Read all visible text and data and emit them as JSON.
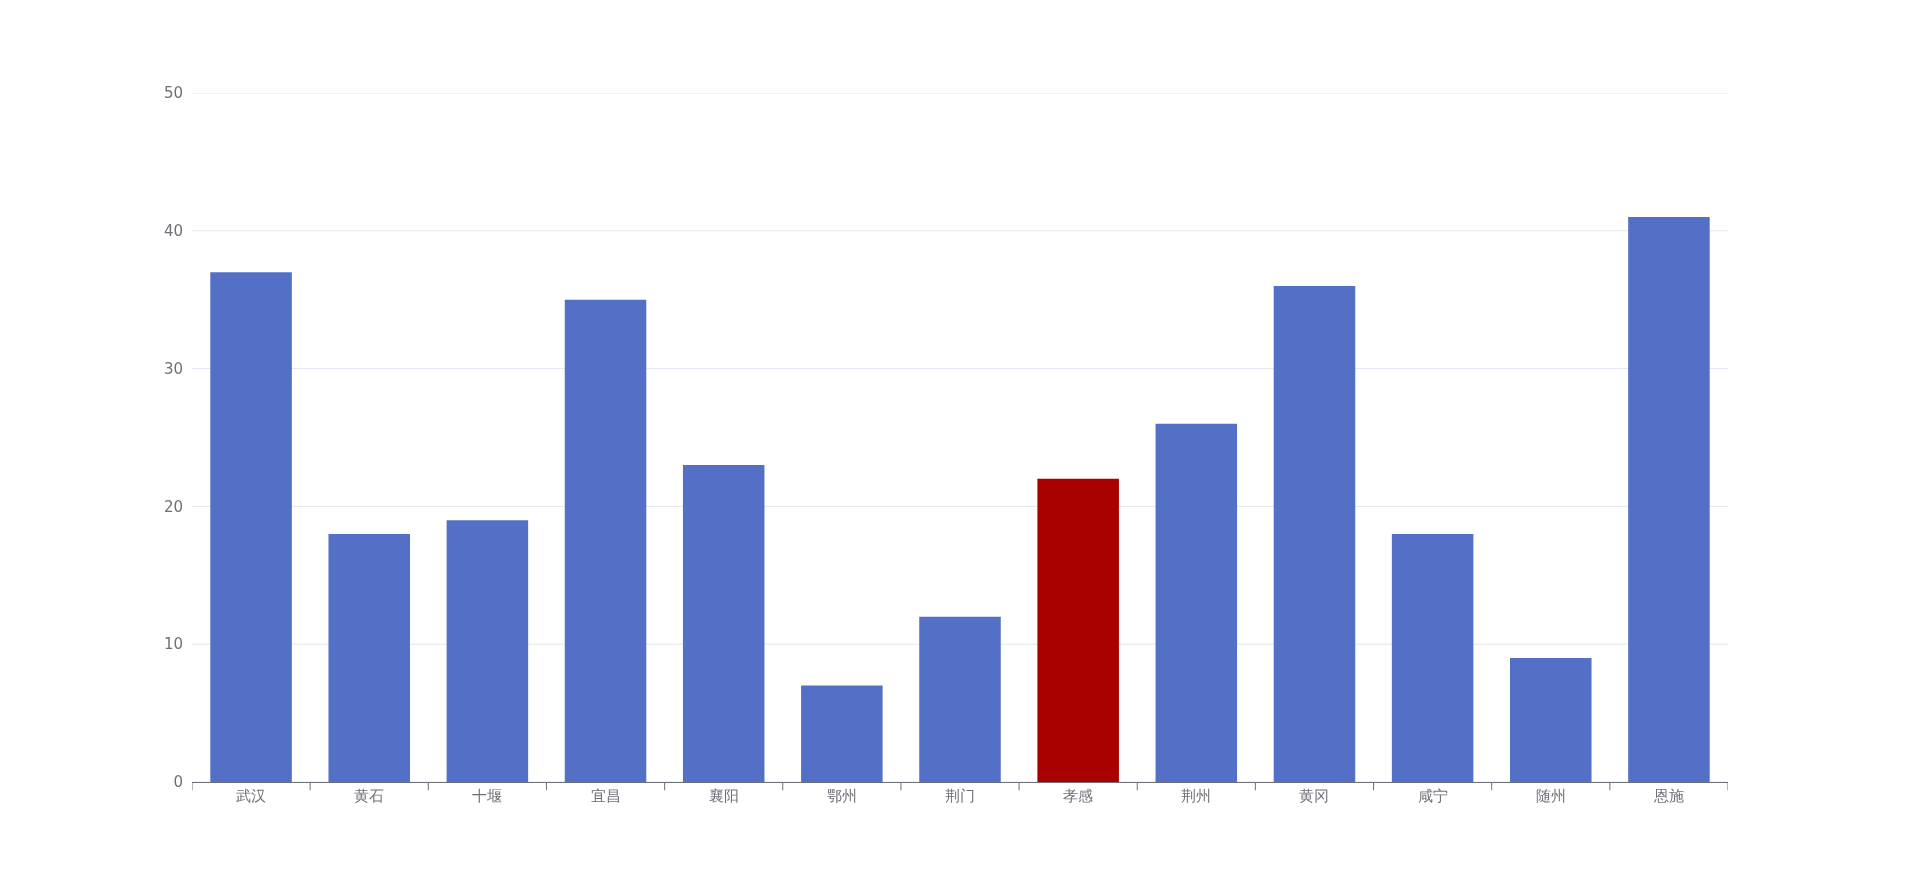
{
  "chart_data": {
    "type": "bar",
    "categories": [
      "武汉",
      "黄石",
      "十堰",
      "宜昌",
      "襄阳",
      "鄂州",
      "荆门",
      "孝感",
      "荆州",
      "黄冈",
      "咸宁",
      "随州",
      "恩施"
    ],
    "values": [
      37,
      18,
      19,
      35,
      23,
      7,
      12,
      22,
      26,
      36,
      18,
      9,
      41
    ],
    "colors": [
      "#5470c6",
      "#5470c6",
      "#5470c6",
      "#5470c6",
      "#5470c6",
      "#5470c6",
      "#5470c6",
      "#a90000",
      "#5470c6",
      "#5470c6",
      "#5470c6",
      "#5470c6",
      "#5470c6"
    ],
    "ylim": [
      0,
      50
    ],
    "yticks": [
      0,
      10,
      20,
      30,
      40,
      50
    ],
    "grid": "y"
  }
}
